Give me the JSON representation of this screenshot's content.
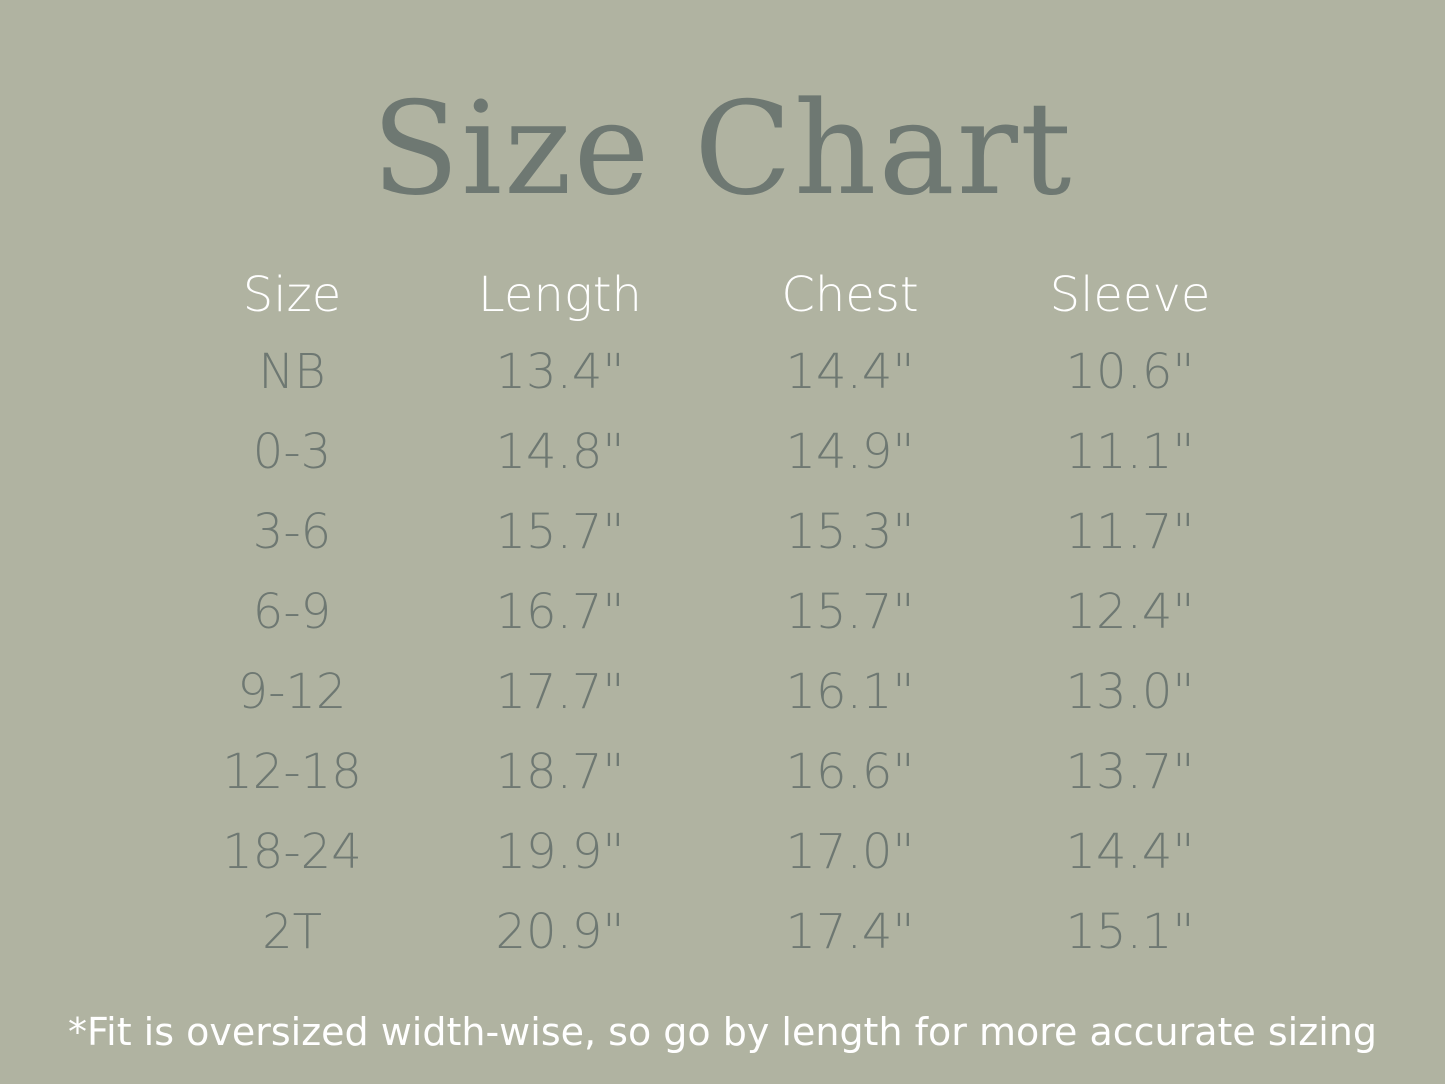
{
  "title": "Size Chart",
  "colors": {
    "background": "#b0b3a1",
    "text": "#6e7872",
    "header": "#ffffff"
  },
  "table": {
    "headers": [
      "Size",
      "Length",
      "Chest",
      "Sleeve"
    ],
    "rows": [
      [
        "NB",
        "13.4\"",
        "14.4\"",
        "10.6\""
      ],
      [
        "0-3",
        "14.8\"",
        "14.9\"",
        "11.1\""
      ],
      [
        "3-6",
        "15.7\"",
        "15.3\"",
        "11.7\""
      ],
      [
        "6-9",
        "16.7\"",
        "15.7\"",
        "12.4\""
      ],
      [
        "9-12",
        "17.7\"",
        "16.1\"",
        "13.0\""
      ],
      [
        "12-18",
        "18.7\"",
        "16.6\"",
        "13.7\""
      ],
      [
        "18-24",
        "19.9\"",
        "17.0\"",
        "14.4\""
      ],
      [
        "2T",
        "20.9\"",
        "17.4\"",
        "15.1\""
      ]
    ]
  },
  "footnote": "*Fit is oversized width-wise, so go by length for more accurate sizing"
}
